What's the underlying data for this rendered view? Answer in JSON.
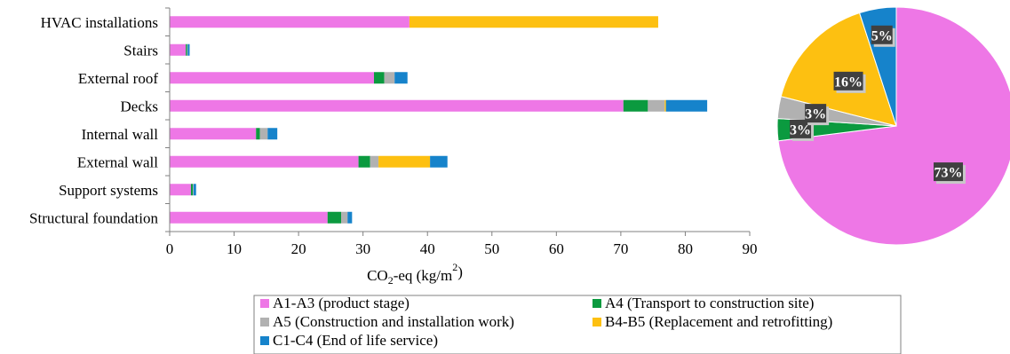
{
  "chart_data": [
    {
      "type": "bar",
      "orientation": "horizontal",
      "stacked": true,
      "categories": [
        "HVAC installations",
        "Stairs",
        "External roof",
        "Decks",
        "Internal wall",
        "External wall",
        "Support systems",
        "Structural foundation"
      ],
      "series": [
        {
          "name": "A1-A3 (product stage)",
          "color": "#ee77e6",
          "values": [
            37.2,
            2.5,
            31.7,
            70.4,
            13.4,
            29.3,
            3.3,
            24.5
          ]
        },
        {
          "name": "A4 (Transport to construction site)",
          "color": "#0b9a3f",
          "values": [
            0,
            0.2,
            1.6,
            3.8,
            0.6,
            1.8,
            0.3,
            2.1
          ]
        },
        {
          "name": "A5 (Construction and installation work)",
          "color": "#b1b1b1",
          "values": [
            0,
            0.1,
            1.6,
            2.6,
            1.2,
            1.3,
            0.1,
            1.0
          ]
        },
        {
          "name": "B4-B5 (Replacement and retrofitting)",
          "color": "#fdc011",
          "values": [
            38.6,
            0,
            0,
            0.2,
            0,
            8.0,
            0,
            0
          ]
        },
        {
          "name": "C1-C4 (End of life service)",
          "color": "#1683cb",
          "values": [
            0,
            0.3,
            2.0,
            6.4,
            1.5,
            2.7,
            0.4,
            0.7
          ]
        }
      ],
      "xlabel_main": "CO",
      "xlabel_sub": "2",
      "xlabel_rest": "-eq  (kg/m",
      "xlabel_sup": "2",
      "xlabel_close": ")",
      "xlim": [
        0,
        90
      ],
      "xticks": [
        "0",
        "10",
        "20",
        "30",
        "40",
        "50",
        "60",
        "70",
        "80",
        "90"
      ],
      "grid": false,
      "legend_position": "bottom"
    },
    {
      "type": "pie",
      "slices": [
        {
          "label": "73%",
          "value": 73,
          "color": "#ee77e6"
        },
        {
          "label": "3%",
          "value": 3,
          "color": "#0b9a3f"
        },
        {
          "label": "3%",
          "value": 3,
          "color": "#b1b1b1"
        },
        {
          "label": "16%",
          "value": 16,
          "color": "#fdc011"
        },
        {
          "label": "5%",
          "value": 5,
          "color": "#1683cb"
        }
      ],
      "start": "12 o'clock",
      "direction": "clockwise"
    }
  ]
}
